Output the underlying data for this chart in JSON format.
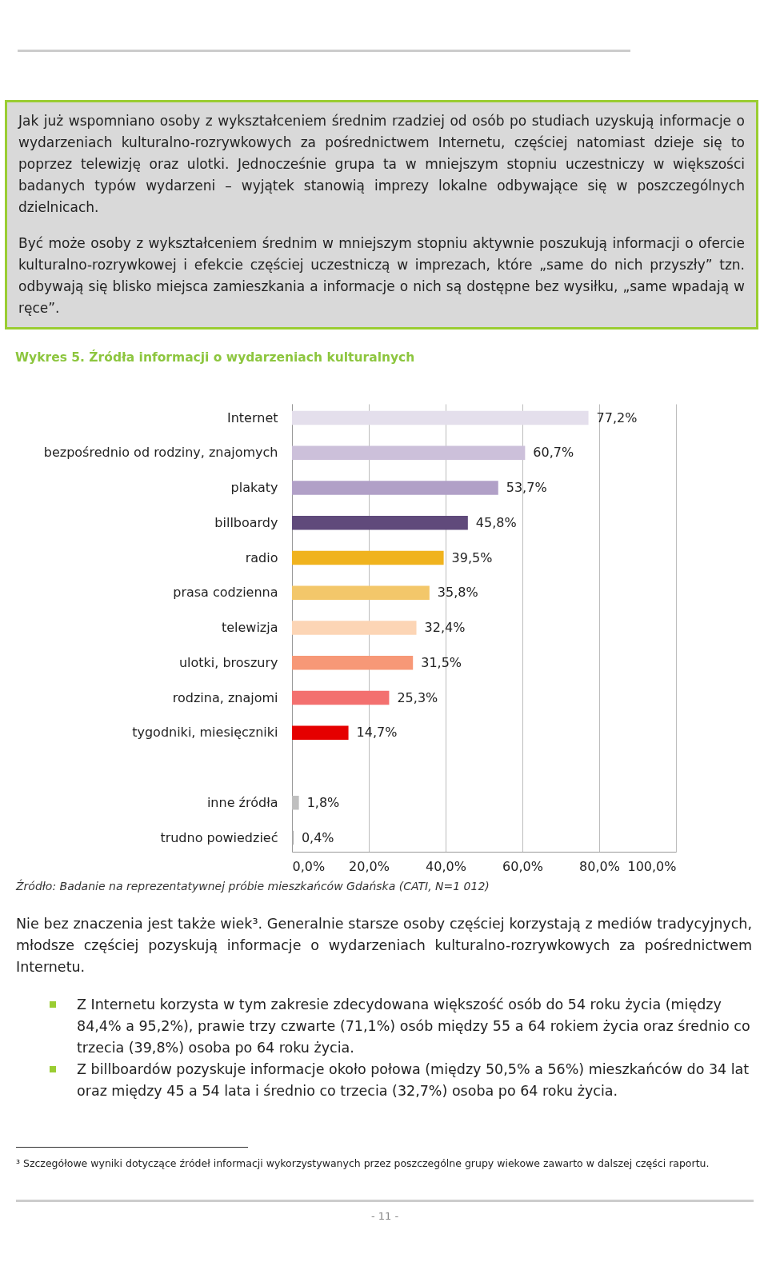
{
  "chart_data": {
    "type": "bar",
    "orientation": "horizontal",
    "title": "Wykres 5. Źródła informacji o wydarzeniach kulturalnych",
    "categories": [
      "Internet",
      "bezpośrednio od rodziny, znajomych",
      "plakaty",
      "billboardy",
      "radio",
      "prasa codzienna",
      "telewizja",
      "ulotki, broszury",
      "rodzina, znajomi",
      "tygodniki, miesięczniki",
      null,
      "inne źródła",
      "trudno powiedzieć"
    ],
    "values": [
      77.2,
      60.7,
      53.7,
      45.8,
      39.5,
      35.8,
      32.4,
      31.5,
      25.3,
      14.7,
      null,
      1.8,
      0.4
    ],
    "value_labels": [
      "77,2%",
      "60,7%",
      "53,7%",
      "45,8%",
      "39,5%",
      "35,8%",
      "32,4%",
      "31,5%",
      "25,3%",
      "14,7%",
      null,
      "1,8%",
      "0,4%"
    ],
    "colors": [
      "#e4dfec",
      "#ccc0da",
      "#b1a0c7",
      "#604a7b",
      "#f0b31e",
      "#f3c76a",
      "#fcd5b5",
      "#f79877",
      "#f3706f",
      "#e50000",
      null,
      "#bfbfbf",
      "#a6a6a6"
    ],
    "xlim": [
      0,
      100
    ],
    "xticks": [
      {
        "value": 0,
        "label": "0,0%"
      },
      {
        "value": 20,
        "label": "20,0%"
      },
      {
        "value": 40,
        "label": "40,0%"
      },
      {
        "value": 60,
        "label": "60,0%"
      },
      {
        "value": 80,
        "label": "80,0%"
      },
      {
        "value": 100,
        "label": "100,0%"
      }
    ],
    "grid": "x",
    "annotations": [
      "Jak już wspomniano osoby z wykształceniem średnim rzadziej od osób po studiach uzyskują informacje o wydarzeniach kulturalno-rozrywkowych za pośrednictwem Internetu, częściej natomiast dzieje się to poprzez telewizję oraz ulotki. Jednocześnie grupa ta w mniejszym stopniu uczestniczy w większości badanych typów wydarzeni – wyjątek stanowią imprezy lokalne odbywające się w poszczególnych dzielnicach.",
      "Być może osoby z wykształceniem średnim w mniejszym stopniu aktywnie poszukują informacji o ofercie kulturalno-rozrywkowej i efekcie częściej uczestniczą w imprezach, które „same do nich przyszły” tzn. odbywają się blisko miejsca zamieszkania a informacje o nich są dostępne bez wysiłku, „same wpadają w ręce”.",
      "Źródło: Badanie na reprezentatywnej próbie mieszkańców Gdańska (CATI, N=1 012)",
      "Nie bez znaczenia jest także wiek³. Generalnie starsze osoby częściej korzystają z mediów tradycyjnych, młodsze częściej pozyskują informacje o wydarzeniach kulturalno-rozrywkowych za pośrednictwem Internetu.",
      "Z Internetu korzysta w tym zakresie zdecydowana większość osób do 54 roku życia (między 84,4% a 95,2%), prawie trzy czwarte (71,1%) osób między 55 a 64 rokiem życia oraz średnio co trzecia (39,8%) osoba po 64 roku życia.",
      "Z billboardów pozyskuje informacje około połowa (między 50,5% a 56%) mieszkańców do 34 lat oraz między 45 a 54 lata i średnio co trzecia (32,7%) osoba po 64 roku życia.",
      "³ Szczegółowe wyniki dotyczące źródeł informacji wykorzystywanych przez poszczególne grupy wiekowe zawarto w dalszej części raportu.",
      "- 11 -"
    ]
  }
}
